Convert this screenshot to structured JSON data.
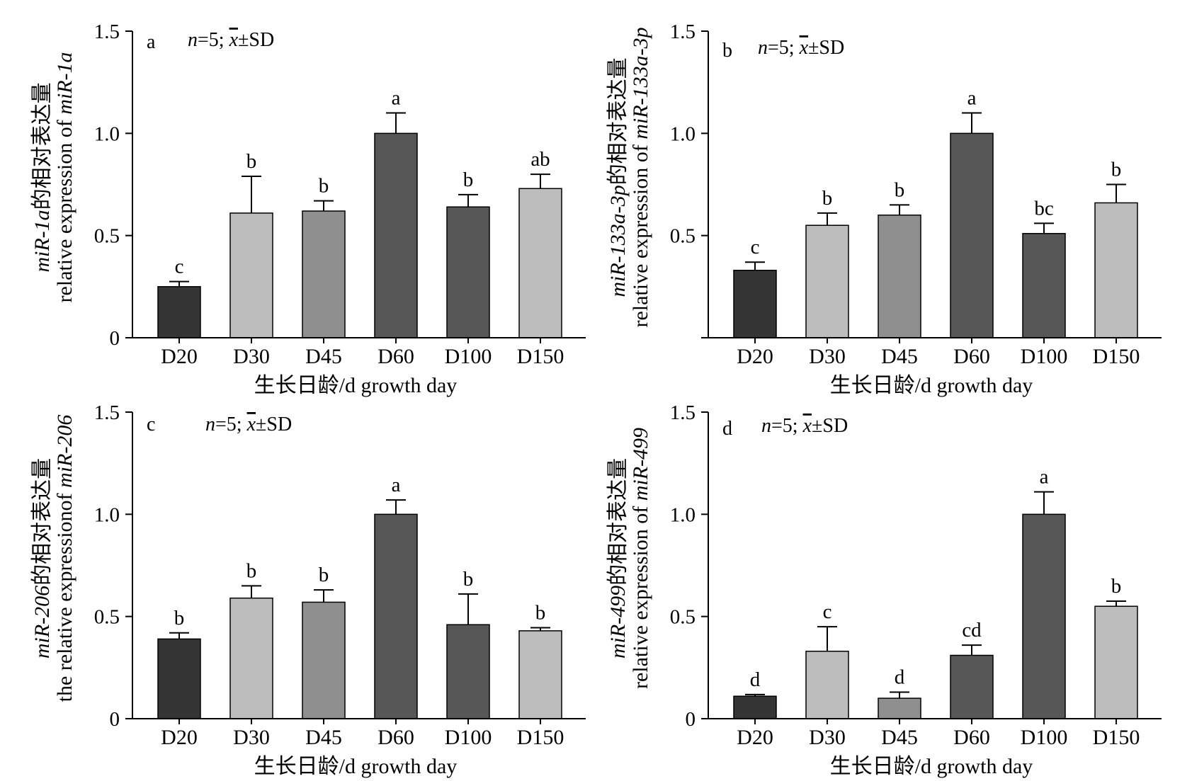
{
  "figure": {
    "xlabel": "生长日龄/d growth day",
    "stat_note": {
      "n_part": "n",
      "eq_part": "=5; ",
      "xbar": "x",
      "pm_sd": "±SD"
    }
  },
  "chart_data": [
    {
      "panel": "a",
      "type": "bar",
      "categories": [
        "D20",
        "D30",
        "D45",
        "D60",
        "D100",
        "D150"
      ],
      "values": [
        0.25,
        0.61,
        0.62,
        1.0,
        0.64,
        0.73
      ],
      "errors": [
        0.025,
        0.18,
        0.05,
        0.1,
        0.06,
        0.07
      ],
      "letters": [
        "c",
        "b",
        "b",
        "a",
        "b",
        "ab"
      ],
      "colors": [
        "#353535",
        "#bdbdbd",
        "#8f8f8f",
        "#575757",
        "#575757",
        "#bdbdbd"
      ],
      "ylim": [
        0,
        1.5
      ],
      "yticks": [
        "0",
        "0.5",
        "1.0",
        "1.5"
      ],
      "ylabel_line1": [
        {
          "t": "miR-1a",
          "i": true
        },
        {
          "t": "的相对表达量",
          "i": false
        }
      ],
      "ylabel_line2": [
        {
          "t": "relative expression of ",
          "i": false
        },
        {
          "t": "miR-1a",
          "i": true
        }
      ],
      "xlabel": "生长日龄/d growth day"
    },
    {
      "panel": "b",
      "type": "bar",
      "categories": [
        "D20",
        "D30",
        "D45",
        "D60",
        "D100",
        "D150"
      ],
      "values": [
        0.33,
        0.55,
        0.6,
        1.0,
        0.51,
        0.66
      ],
      "errors": [
        0.04,
        0.06,
        0.05,
        0.1,
        0.05,
        0.09
      ],
      "letters": [
        "c",
        "b",
        "b",
        "a",
        "bc",
        "b"
      ],
      "colors": [
        "#353535",
        "#bdbdbd",
        "#8f8f8f",
        "#575757",
        "#575757",
        "#bdbdbd"
      ],
      "ylim": [
        0,
        1.5
      ],
      "yticks": [
        "",
        "0.5",
        "1.0",
        "1.5"
      ],
      "ylabel_line1": [
        {
          "t": "miR-133a-3p",
          "i": true
        },
        {
          "t": "的相对表达量",
          "i": false
        }
      ],
      "ylabel_line2": [
        {
          "t": "relative expression of ",
          "i": false
        },
        {
          "t": "miR-133a-3p",
          "i": true
        }
      ],
      "xlabel": "生长日龄/d growth day"
    },
    {
      "panel": "c",
      "type": "bar",
      "categories": [
        "D20",
        "D30",
        "D45",
        "D60",
        "D100",
        "D150"
      ],
      "values": [
        0.39,
        0.59,
        0.57,
        1.0,
        0.46,
        0.43
      ],
      "errors": [
        0.03,
        0.06,
        0.06,
        0.07,
        0.15,
        0.015
      ],
      "letters": [
        "b",
        "b",
        "b",
        "a",
        "b",
        "b"
      ],
      "colors": [
        "#353535",
        "#bdbdbd",
        "#8f8f8f",
        "#575757",
        "#575757",
        "#bdbdbd"
      ],
      "ylim": [
        0,
        1.5
      ],
      "yticks": [
        "0",
        "0.5",
        "1.0",
        "1.5"
      ],
      "ylabel_line1": [
        {
          "t": "miR-206",
          "i": true
        },
        {
          "t": "的相对表达量",
          "i": false
        }
      ],
      "ylabel_line2": [
        {
          "t": "the relative expressionof ",
          "i": false
        },
        {
          "t": "miR-206",
          "i": true
        }
      ],
      "xlabel": "生长日龄/d growth day"
    },
    {
      "panel": "d",
      "type": "bar",
      "categories": [
        "D20",
        "D30",
        "D45",
        "D60",
        "D100",
        "D150"
      ],
      "values": [
        0.11,
        0.33,
        0.1,
        0.31,
        1.0,
        0.55
      ],
      "errors": [
        0.008,
        0.12,
        0.03,
        0.05,
        0.11,
        0.025
      ],
      "letters": [
        "d",
        "c",
        "d",
        "cd",
        "a",
        "b"
      ],
      "colors": [
        "#353535",
        "#bdbdbd",
        "#8f8f8f",
        "#575757",
        "#575757",
        "#bdbdbd"
      ],
      "ylim": [
        0,
        1.5
      ],
      "yticks": [
        "0",
        "0.5",
        "1.0",
        "1.5"
      ],
      "ylabel_line1": [
        {
          "t": "miR-499",
          "i": true
        },
        {
          "t": "的相对表达量",
          "i": false
        }
      ],
      "ylabel_line2": [
        {
          "t": "relative expression of ",
          "i": false
        },
        {
          "t": "miR-499",
          "i": true
        }
      ],
      "xlabel": "生长日龄/d growth day"
    }
  ]
}
